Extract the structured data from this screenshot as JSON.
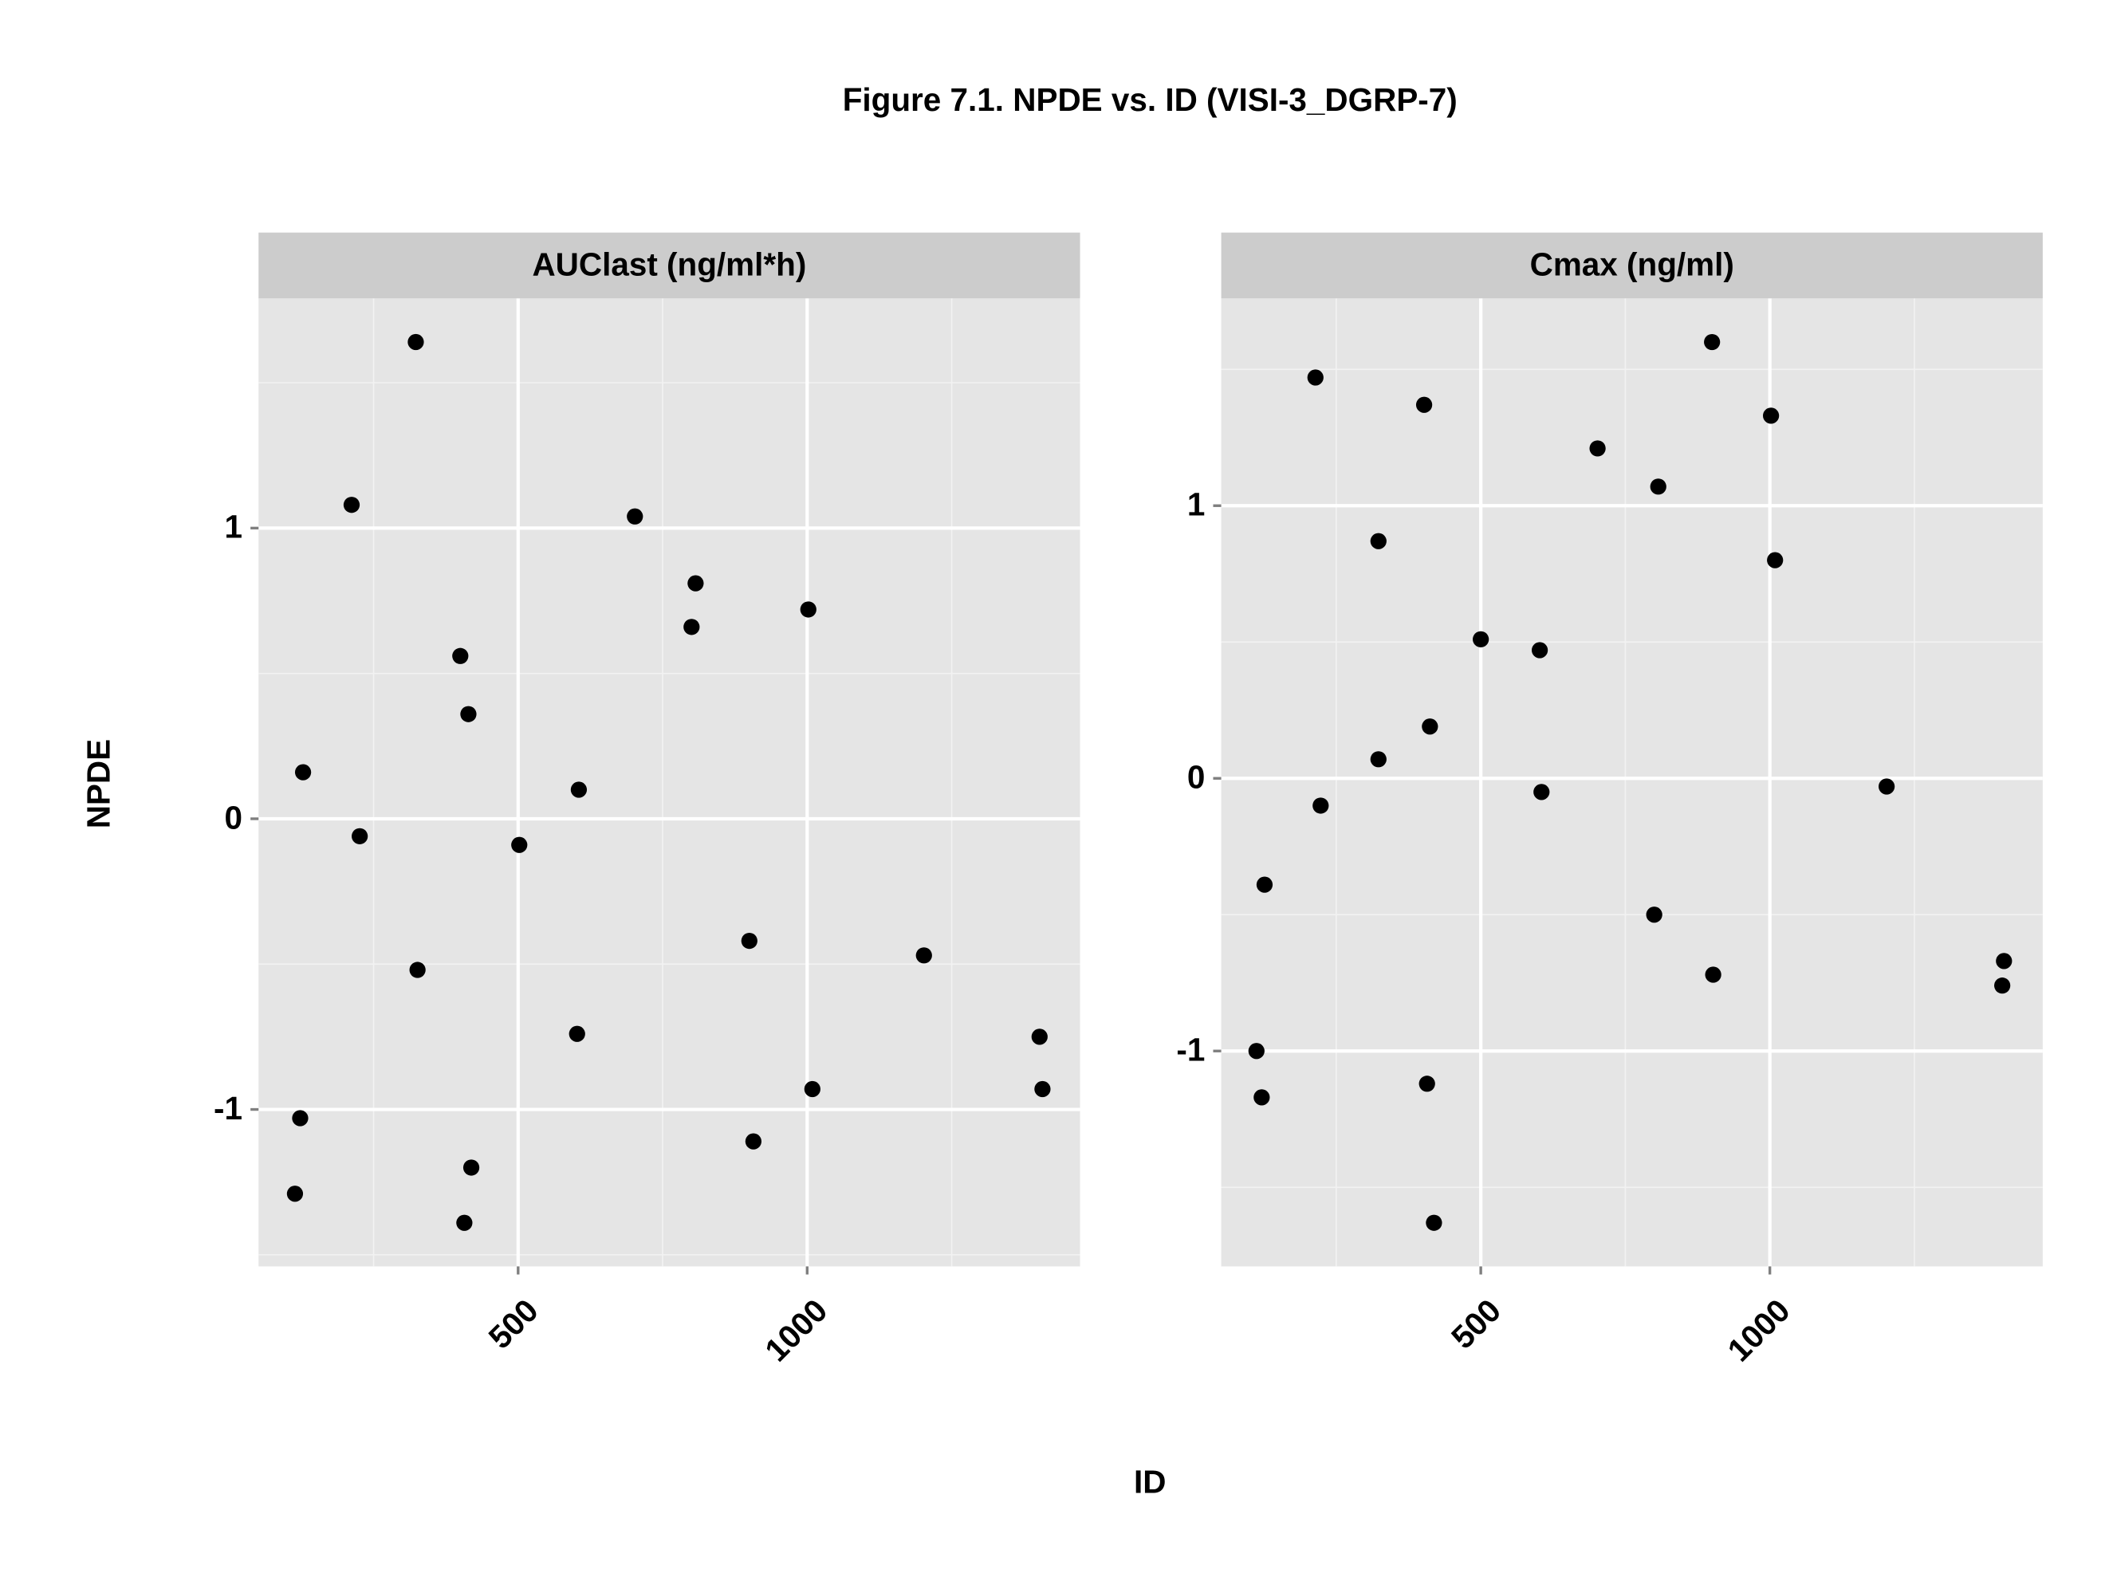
{
  "title": "Figure 7.1. NPDE vs. ID (VISI-3_DGRP-7)",
  "xlabel": "ID",
  "ylabel": "NPDE",
  "chart_data": [
    {
      "type": "scatter",
      "title": "AUClast (ng/ml*h)",
      "color": "#000000",
      "grid": true,
      "xlim": [
        51,
        1472
      ],
      "ylim": [
        -1.54,
        1.79
      ],
      "xticks": [
        500,
        1000
      ],
      "yticks": [
        -1,
        0,
        1
      ],
      "minor_xticks": [
        250,
        750,
        1250
      ],
      "minor_yticks": [
        -1.5,
        -0.5,
        0.5,
        1.5
      ],
      "x": [
        323,
        212,
        128,
        226,
        326,
        123,
        114,
        400,
        414,
        419,
        407,
        502,
        605,
        602,
        702,
        807,
        800,
        900,
        907,
        1002,
        1009,
        1202,
        1402,
        1407
      ],
      "values": [
        1.64,
        1.08,
        0.16,
        -0.06,
        -0.52,
        -1.03,
        -1.29,
        0.56,
        0.36,
        -1.2,
        -1.39,
        -0.09,
        0.1,
        -0.74,
        1.04,
        0.81,
        0.66,
        -0.42,
        -1.11,
        0.72,
        -0.93,
        -0.47,
        -0.75,
        -0.93
      ]
    },
    {
      "type": "scatter",
      "title": "Cmax (ng/ml)",
      "color": "#000000",
      "grid": true,
      "xlim": [
        51,
        1472
      ],
      "ylim": [
        -1.79,
        1.76
      ],
      "xticks": [
        500,
        1000
      ],
      "yticks": [
        -1,
        0,
        1
      ],
      "minor_xticks": [
        250,
        750,
        1250
      ],
      "minor_yticks": [
        -1.5,
        -0.5,
        0.5,
        1.5
      ],
      "x": [
        214,
        402,
        323,
        702,
        807,
        900,
        1002,
        1009,
        500,
        602,
        412,
        323,
        223,
        605,
        1202,
        126,
        800,
        902,
        1405,
        1402,
        112,
        121,
        407,
        419
      ],
      "values": [
        1.47,
        1.37,
        0.87,
        1.21,
        1.07,
        1.6,
        1.33,
        0.8,
        0.51,
        0.47,
        0.19,
        0.07,
        -0.1,
        -0.05,
        -0.03,
        -0.39,
        -0.5,
        -0.72,
        -0.67,
        -0.76,
        -1.0,
        -1.17,
        -1.12,
        -1.63
      ]
    }
  ]
}
